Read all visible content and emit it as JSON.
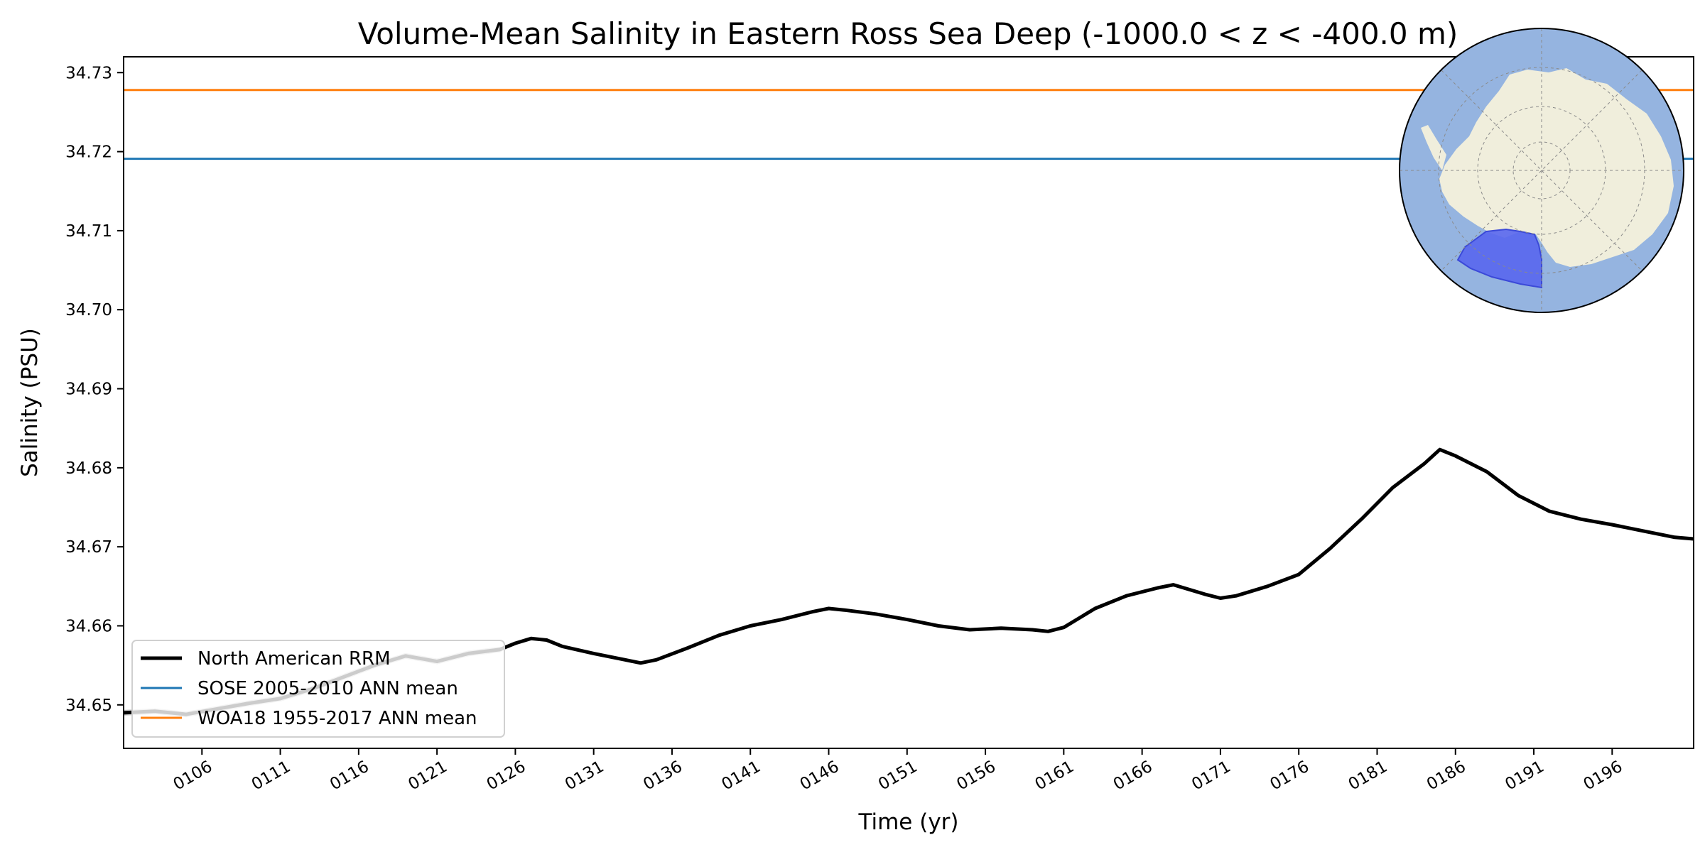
{
  "chart_data": {
    "type": "line",
    "title": "Volume-Mean Salinity in Eastern Ross Sea Deep (-1000.0 < z < -400.0 m)",
    "xlabel": "Time (yr)",
    "ylabel": "Salinity (PSU)",
    "xlim": [
      101,
      201.2
    ],
    "ylim": [
      34.6445,
      34.732
    ],
    "x_ticks": [
      106,
      111,
      116,
      121,
      126,
      131,
      136,
      141,
      146,
      151,
      156,
      161,
      166,
      171,
      176,
      181,
      186,
      191,
      196
    ],
    "x_tick_labels": [
      "0106",
      "0111",
      "0116",
      "0121",
      "0126",
      "0131",
      "0136",
      "0141",
      "0146",
      "0151",
      "0156",
      "0161",
      "0166",
      "0171",
      "0176",
      "0181",
      "0186",
      "0191",
      "0196"
    ],
    "y_ticks": [
      34.65,
      34.66,
      34.67,
      34.68,
      34.69,
      34.7,
      34.71,
      34.72,
      34.73
    ],
    "y_tick_labels": [
      "34.65",
      "34.66",
      "34.67",
      "34.68",
      "34.69",
      "34.70",
      "34.71",
      "34.72",
      "34.73"
    ],
    "grid": false,
    "legend_position": "lower-left",
    "series": [
      {
        "name": "North American RRM",
        "color": "#000000",
        "style": "solid-thick",
        "x": [
          101,
          103,
          105,
          107,
          109,
          111,
          113,
          115,
          117,
          119,
          121,
          123,
          125,
          126,
          127,
          128,
          129,
          131,
          133,
          134,
          135,
          137,
          139,
          141,
          143,
          145,
          146,
          147,
          149,
          151,
          153,
          155,
          157,
          159,
          160,
          161,
          163,
          165,
          167,
          168,
          170,
          171,
          172,
          174,
          176,
          178,
          180,
          182,
          184,
          185,
          186,
          188,
          190,
          192,
          194,
          196,
          198,
          200,
          201.2
        ],
        "values": [
          34.649,
          34.6492,
          34.6488,
          34.6495,
          34.6502,
          34.6508,
          34.652,
          34.6535,
          34.655,
          34.6562,
          34.6555,
          34.6565,
          34.657,
          34.6578,
          34.6584,
          34.6582,
          34.6574,
          34.6565,
          34.6557,
          34.6553,
          34.6557,
          34.6572,
          34.6588,
          34.66,
          34.6608,
          34.6618,
          34.6622,
          34.662,
          34.6615,
          34.6608,
          34.66,
          34.6595,
          34.6597,
          34.6595,
          34.6593,
          34.6598,
          34.6622,
          34.6638,
          34.6648,
          34.6652,
          34.664,
          34.6635,
          34.6638,
          34.665,
          34.6665,
          34.6698,
          34.6735,
          34.6775,
          34.6805,
          34.6823,
          34.6815,
          34.6795,
          34.6765,
          34.6745,
          34.6735,
          34.6728,
          34.672,
          34.6712,
          34.671
        ]
      },
      {
        "name": "",
        "color": "#c8c8c8",
        "style": "solid-thick-gray",
        "x": [
          101,
          103,
          105,
          107,
          109,
          111,
          113,
          115,
          117,
          119,
          121,
          123,
          125
        ],
        "values": [
          34.649,
          34.6492,
          34.6488,
          34.6495,
          34.6502,
          34.6508,
          34.652,
          34.6535,
          34.655,
          34.6562,
          34.6555,
          34.6565,
          34.657
        ]
      },
      {
        "name": "SOSE 2005-2010 ANN mean",
        "color": "#1f77b4",
        "style": "hline",
        "value": 34.7191
      },
      {
        "name": "WOA18 1955-2017 ANN mean",
        "color": "#ff7f0e",
        "style": "hline",
        "value": 34.7278
      }
    ],
    "inset_map": {
      "description_kind": "south-polar-stereographic",
      "ocean_color": "#95b4e0",
      "land_color": "#f0eedc",
      "region_color": "#5866ee"
    }
  }
}
